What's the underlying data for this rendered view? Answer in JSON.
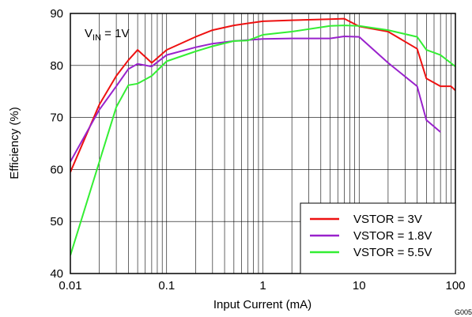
{
  "chart_data": {
    "type": "line",
    "xlabel": "Input Current (mA)",
    "ylabel": "Efficiency (%)",
    "x_scale": "log",
    "xlim": [
      0.01,
      100
    ],
    "ylim": [
      40,
      90
    ],
    "x_ticks": [
      0.01,
      0.1,
      1,
      10,
      100
    ],
    "x_tick_labels": [
      "0.01",
      "0.1",
      "1",
      "10",
      "100"
    ],
    "y_ticks": [
      40,
      50,
      60,
      70,
      80,
      90
    ],
    "y_tick_labels": [
      "40",
      "50",
      "60",
      "70",
      "80",
      "90"
    ],
    "grid": true,
    "legend_position": "bottom-right",
    "annotation": {
      "main": "V",
      "sub": "IN",
      "rest": " = 1V"
    },
    "figure_id": "G005",
    "series": [
      {
        "name": "VSTOR = 3V",
        "color": "#ee1111",
        "x": [
          0.01,
          0.02,
          0.03,
          0.04,
          0.05,
          0.07,
          0.1,
          0.2,
          0.3,
          0.5,
          0.7,
          1,
          2,
          5,
          7,
          10,
          20,
          40,
          50,
          70,
          90,
          100
        ],
        "y": [
          59.5,
          72.5,
          78.0,
          81.0,
          83.0,
          80.5,
          83.0,
          85.5,
          86.8,
          87.7,
          88.1,
          88.5,
          88.7,
          88.9,
          89.0,
          87.5,
          86.5,
          83.2,
          77.5,
          76.0,
          76.0,
          75.2
        ]
      },
      {
        "name": "VSTOR = 1.8V",
        "color": "#9922cc",
        "x": [
          0.01,
          0.02,
          0.03,
          0.04,
          0.05,
          0.07,
          0.1,
          0.2,
          0.3,
          0.5,
          0.7,
          1,
          2,
          5,
          7,
          10,
          20,
          40,
          50,
          70
        ],
        "y": [
          61.5,
          71.5,
          76.0,
          79.3,
          80.3,
          79.8,
          82.0,
          83.5,
          84.2,
          84.7,
          84.9,
          85.1,
          85.2,
          85.2,
          85.6,
          85.5,
          80.5,
          76.0,
          69.5,
          67.2
        ]
      },
      {
        "name": "VSTOR = 5.5V",
        "color": "#33ee33",
        "x": [
          0.01,
          0.02,
          0.03,
          0.04,
          0.05,
          0.07,
          0.1,
          0.2,
          0.3,
          0.5,
          0.7,
          1,
          2,
          5,
          7,
          10,
          20,
          40,
          50,
          70,
          100
        ],
        "y": [
          43.5,
          61.5,
          72.0,
          76.2,
          76.5,
          78.0,
          80.8,
          82.7,
          83.7,
          84.7,
          84.8,
          85.9,
          86.5,
          87.6,
          87.7,
          87.6,
          86.8,
          85.5,
          83.0,
          82.0,
          79.8
        ]
      }
    ]
  }
}
